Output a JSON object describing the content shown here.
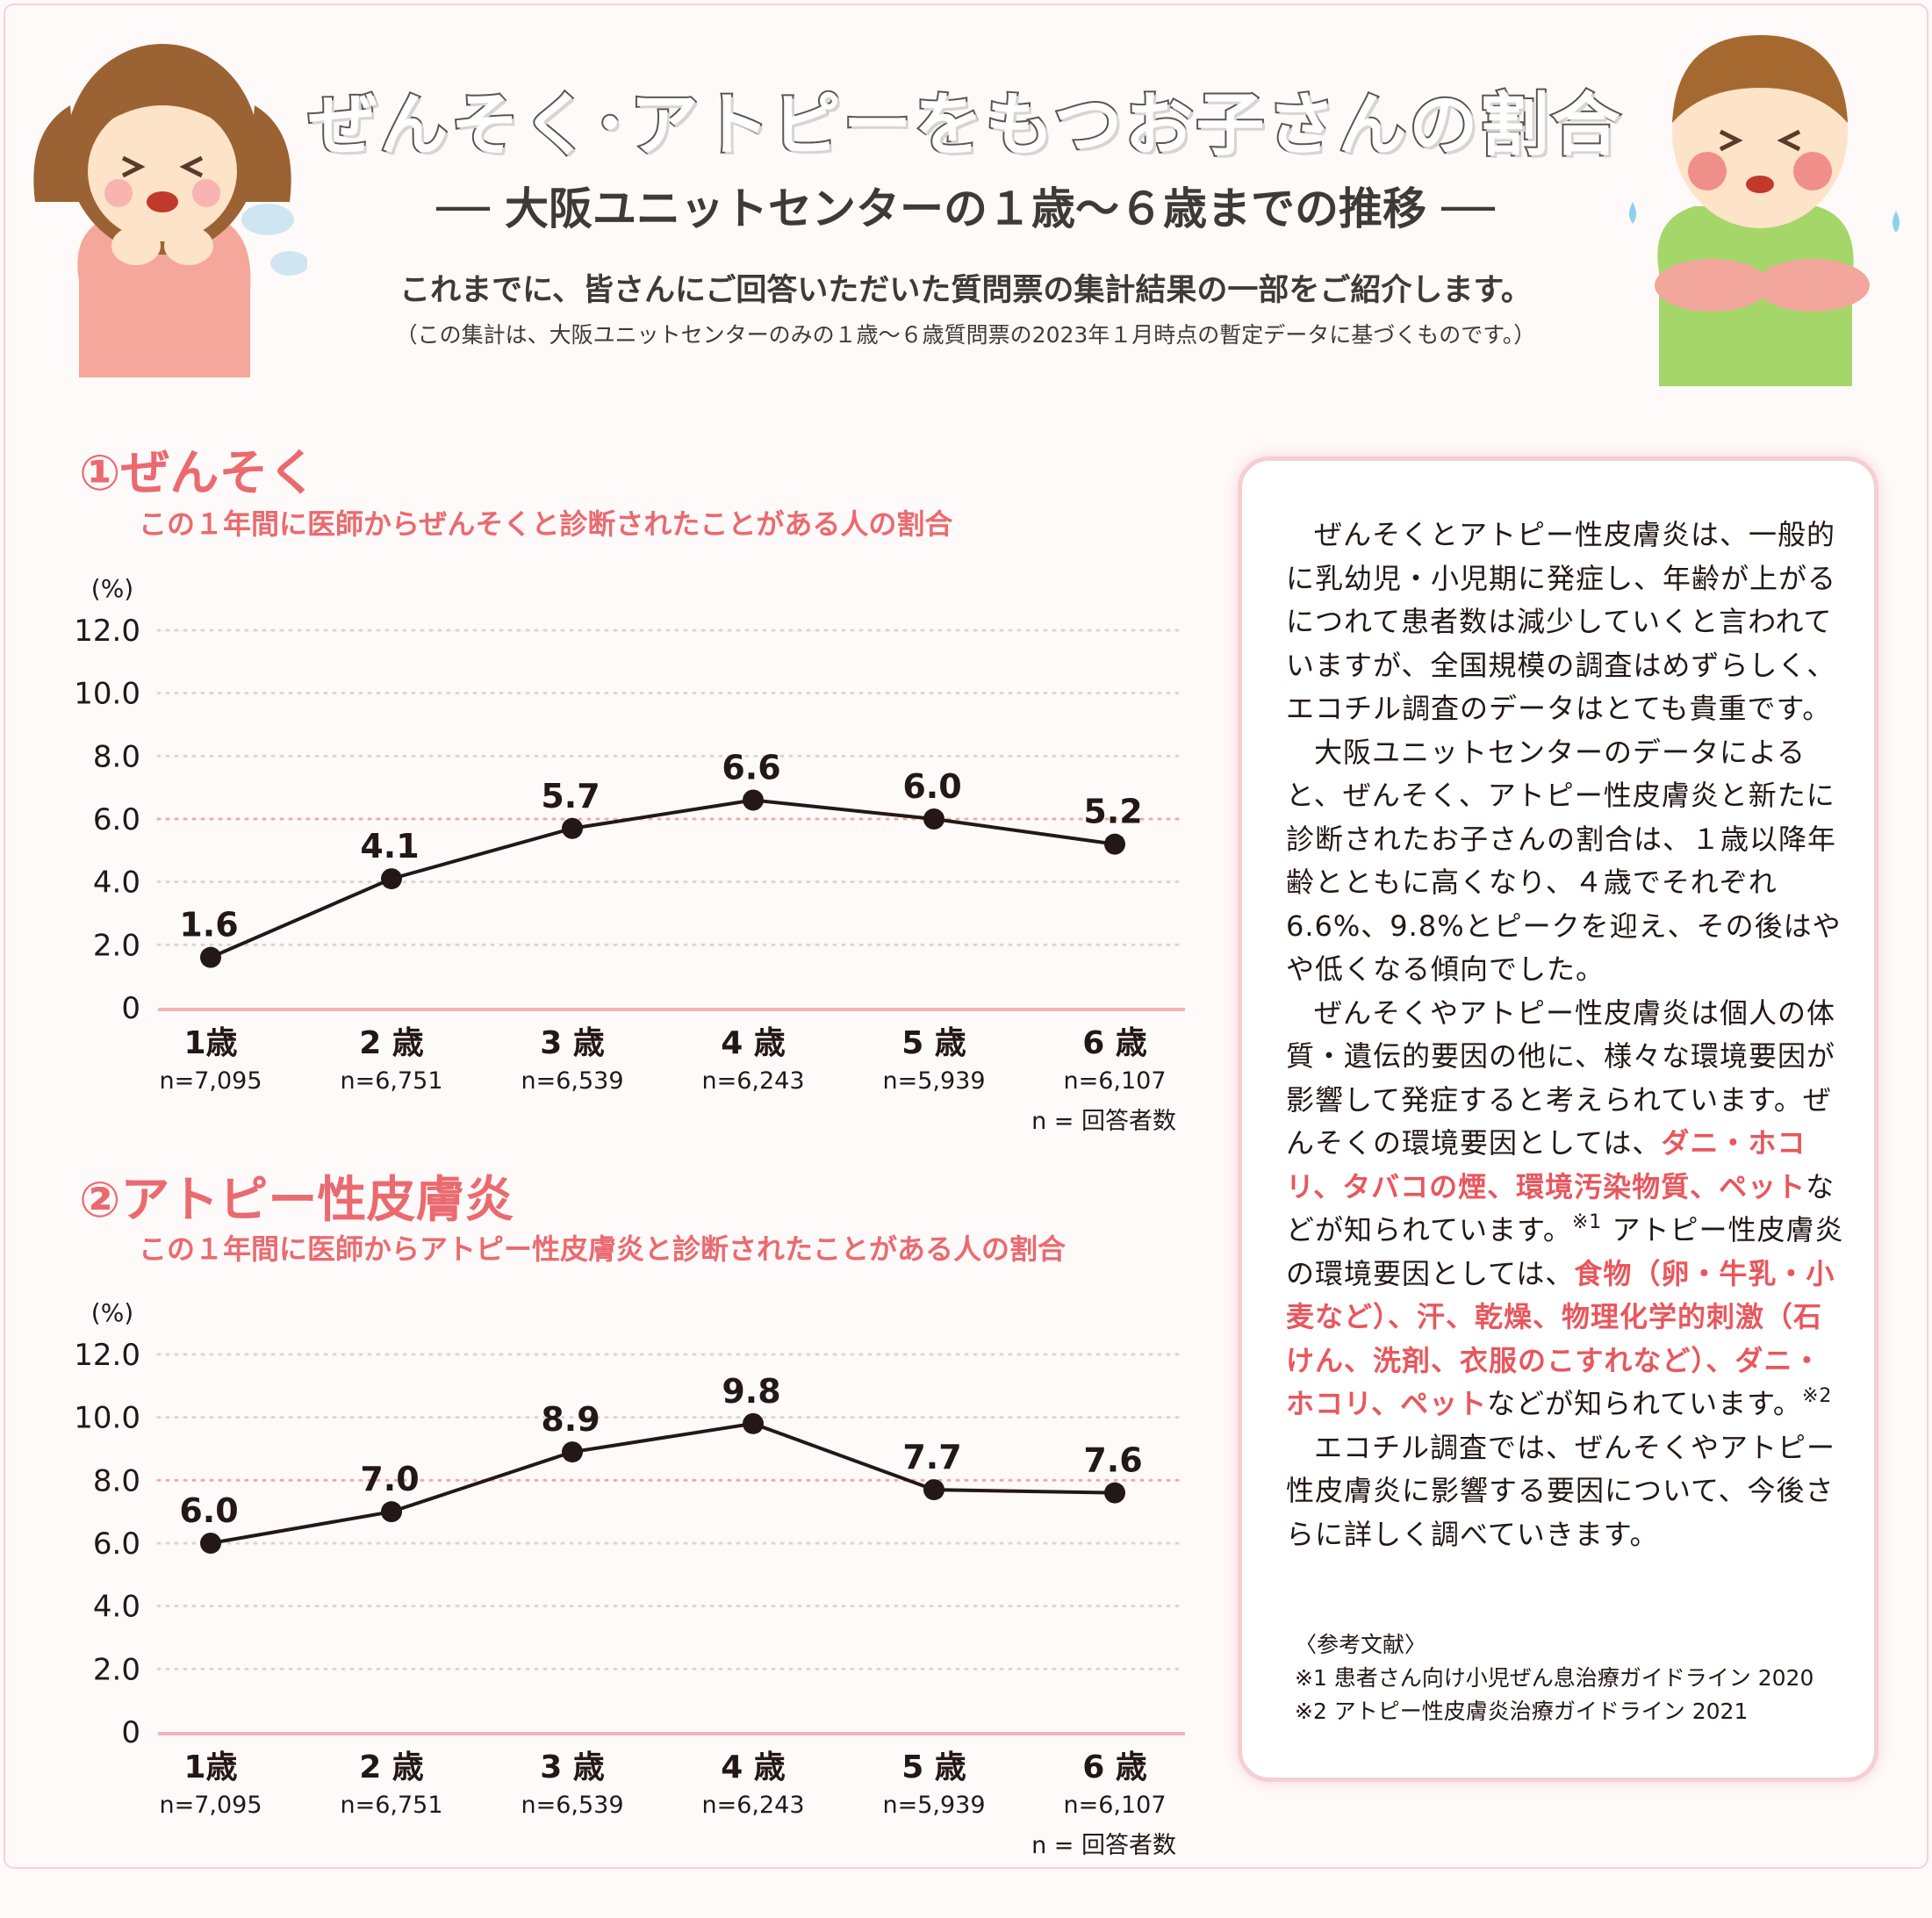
{
  "header": {
    "title": "ぜんそく･アトピーをもつお子さんの割合",
    "subtitle": "── 大阪ユニットセンターの１歳～６歳までの推移 ──",
    "intro": "これまでに、皆さんにご回答いただいた質問票の集計結果の一部をご紹介します。",
    "note": "（この集計は、大阪ユニットセンターのみの１歳～６歳質問票の2023年１月時点の暫定データに基づくものです。）"
  },
  "sections": [
    {
      "title": "①ぜんそく",
      "subtitle": "この１年間に医師からぜんそくと診断されたことがある人の割合"
    },
    {
      "title": "②アトピー性皮膚炎",
      "subtitle": "この１年間に医師からアトピー性皮膚炎と診断されたことがある人の割合"
    }
  ],
  "chart_data": [
    {
      "type": "line",
      "title": "この１年間に医師からぜんそくと診断されたことがある人の割合",
      "ylabel": "(%)",
      "ylim": [
        0,
        12
      ],
      "yticks": [
        "0",
        "2.0",
        "4.0",
        "6.0",
        "8.0",
        "10.0",
        "12.0"
      ],
      "categories": [
        "1歳",
        "2 歳",
        "3 歳",
        "4 歳",
        "5 歳",
        "6 歳"
      ],
      "n_labels": [
        "n=7,095",
        "n=6,751",
        "n=6,539",
        "n=6,243",
        "n=5,939",
        "n=6,107"
      ],
      "values": [
        1.6,
        4.1,
        5.7,
        6.6,
        6.0,
        5.2
      ],
      "value_labels": [
        "1.6",
        "4.1",
        "5.7",
        "6.6",
        "6.0",
        "5.2"
      ],
      "note": "n = 回答者数",
      "grid": true
    },
    {
      "type": "line",
      "title": "この１年間に医師からアトピー性皮膚炎と診断されたことがある人の割合",
      "ylabel": "(%)",
      "ylim": [
        0,
        12
      ],
      "yticks": [
        "0",
        "2.0",
        "4.0",
        "6.0",
        "8.0",
        "10.0",
        "12.0"
      ],
      "categories": [
        "1歳",
        "2 歳",
        "3 歳",
        "4 歳",
        "5 歳",
        "6 歳"
      ],
      "n_labels": [
        "n=7,095",
        "n=6,751",
        "n=6,539",
        "n=6,243",
        "n=5,939",
        "n=6,107"
      ],
      "values": [
        6.0,
        7.0,
        8.9,
        9.8,
        7.7,
        7.6
      ],
      "value_labels": [
        "6.0",
        "7.0",
        "8.9",
        "9.8",
        "7.7",
        "7.6"
      ],
      "note": "n = 回答者数",
      "grid": true
    }
  ],
  "panel": {
    "p1": "ぜんそくとアトピー性皮膚炎は、一般的に乳幼児・小児期に発症し、年齢が上がるにつれて患者数は減少していくと言われていますが、全国規模の調査はめずらしく、エコチル調査のデータはとても貴重です。",
    "p2": "大阪ユニットセンターのデータによると、ぜんそく、アトピー性皮膚炎と新たに診断されたお子さんの割合は、１歳以降年齢とともに高くなり、４歳でそれぞれ6.6%、9.8%とピークを迎え、その後はやや低くなる傾向でした。",
    "p3a": "ぜんそくやアトピー性皮膚炎は個人の体質・遺伝的要因の他に、様々な環境要因が影響して発症すると考えられています。ぜんそくの環境要因としては、",
    "p3b": "ダニ・ホコリ、タバコの煙、環境汚染物質、ペット",
    "p3c": "などが知られています。",
    "p3d": "※1",
    "p3e": " アトピー性皮膚炎の環境要因としては、",
    "p3f": "食物（卵・牛乳・小麦など）、汗、乾燥、物理化学的刺激（石けん、洗剤、衣服のこすれなど）、ダニ・ホコリ、ペット",
    "p3g": "などが知られています。",
    "p3h": "※2",
    "p4": "エコチル調査では、ぜんそくやアトピー性皮膚炎に影響する要因について、今後さらに詳しく調べていきます。",
    "refs_title": "〈参考文献〉",
    "ref1": "※1 患者さん向け小児ぜん息治療ガイドライン 2020",
    "ref2": "※2 アトピー性皮膚炎治療ガイドライン 2021"
  },
  "colors": {
    "accent": "#ea6a6f",
    "gridline": "#f0a9ac",
    "line": "#231815",
    "panel_border": "#f5cfd2"
  }
}
